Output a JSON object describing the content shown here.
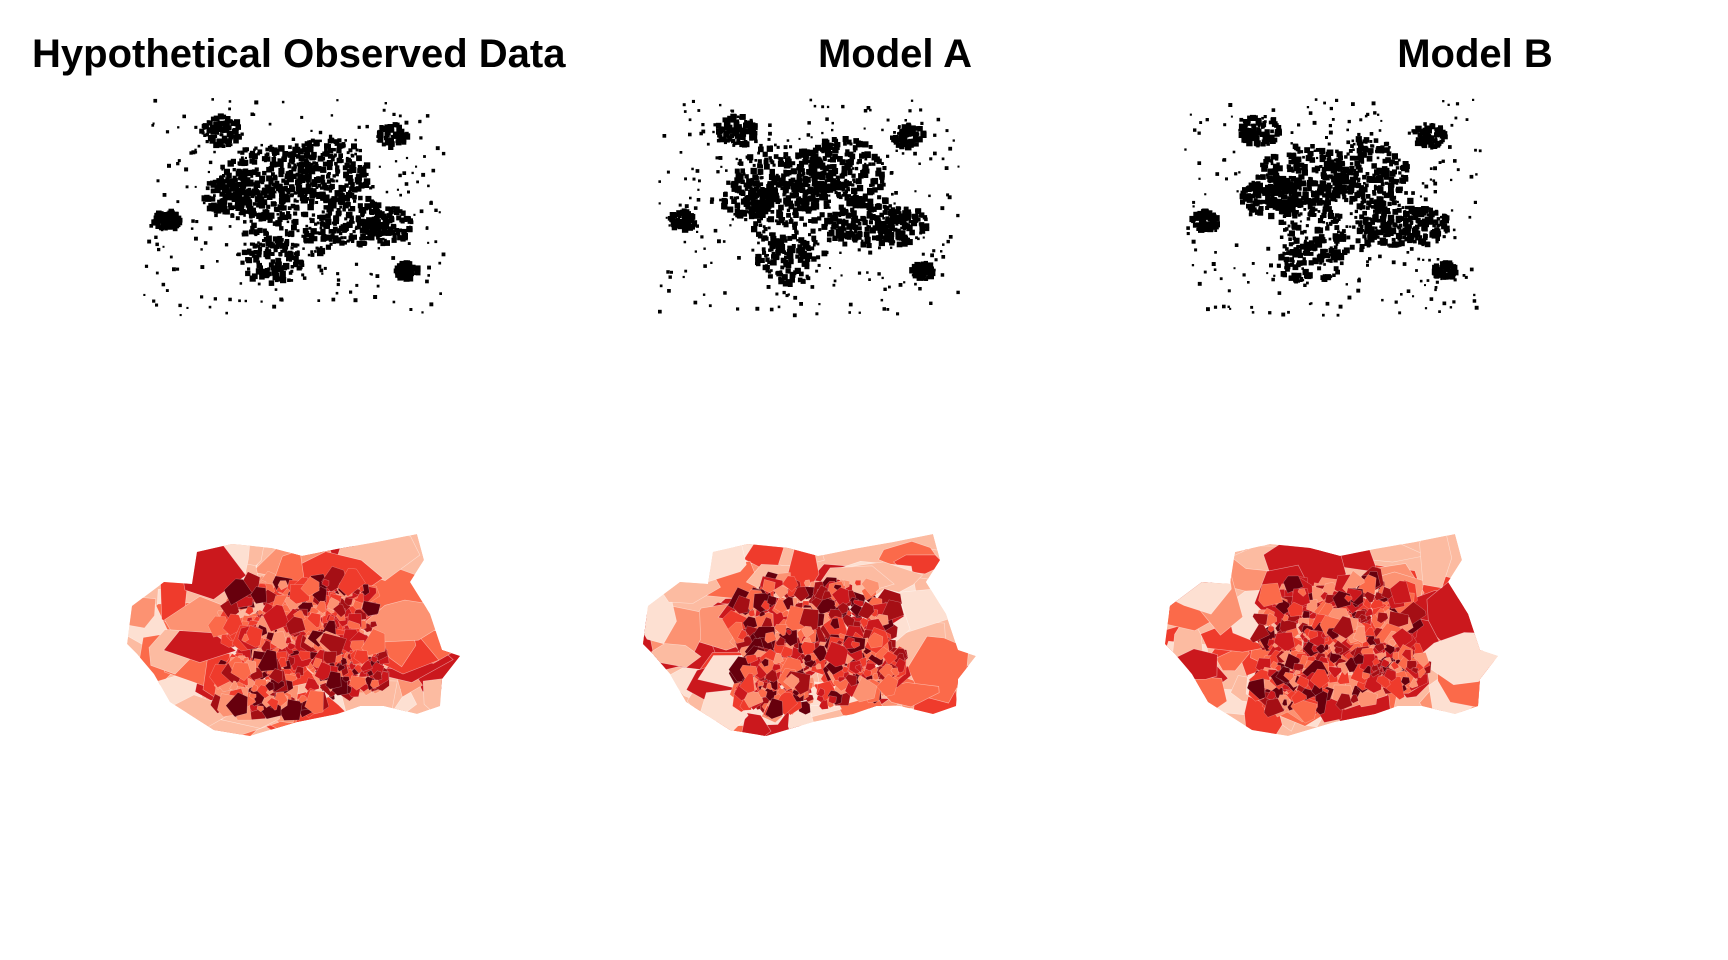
{
  "panels": [
    {
      "title": "Hypothetical Observed Data"
    },
    {
      "title": "Model A"
    },
    {
      "title": "Model B"
    }
  ],
  "rows": [
    {
      "kind": "point-pattern",
      "point_color": "#000000"
    },
    {
      "kind": "choropleth",
      "palette": [
        "#fde0d2",
        "#fcbba1",
        "#fc9272",
        "#fb6a4a",
        "#ef3b2c",
        "#cb181d",
        "#a50f15",
        "#67000d"
      ]
    }
  ]
}
